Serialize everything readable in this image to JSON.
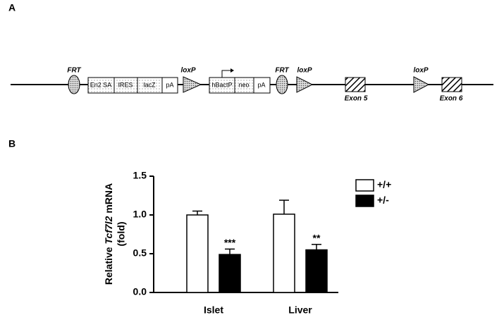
{
  "panel_a": {
    "label": "A",
    "frt_1": "FRT",
    "loxp_1": "loxP",
    "cassette_1": [
      "En2 SA",
      "IRES",
      "lacZ",
      "pA"
    ],
    "cassette_2": [
      "hBactP",
      "neo",
      "pA"
    ],
    "frt_2": "FRT",
    "loxp_2": "loxP",
    "exon_5": "Exon 5",
    "loxp_3": "loxP",
    "exon_6": "Exon 6"
  },
  "chart_data": {
    "type": "bar",
    "panel_label": "B",
    "ylabel_prefix": "Relative",
    "ylabel_gene": "Tcf7l2",
    "ylabel_suffix": "mRNA",
    "ylabel_line2": "(fold)",
    "categories": [
      "Islet",
      "Liver"
    ],
    "series": [
      {
        "name": "+/+",
        "color": "#ffffff",
        "values": [
          1.0,
          1.01
        ],
        "errors": [
          0.05,
          0.18
        ]
      },
      {
        "name": "+/-",
        "color": "#000000",
        "values": [
          0.49,
          0.55
        ],
        "errors": [
          0.07,
          0.07
        ],
        "significance": [
          "***",
          "**"
        ]
      }
    ],
    "ylim": [
      0,
      1.5
    ],
    "yticks": [
      {
        "value": 0,
        "label": "0.0"
      },
      0.5,
      {
        "value": 1,
        "label": "1.0"
      },
      1.5
    ],
    "grid": false,
    "legend": "upper right"
  }
}
